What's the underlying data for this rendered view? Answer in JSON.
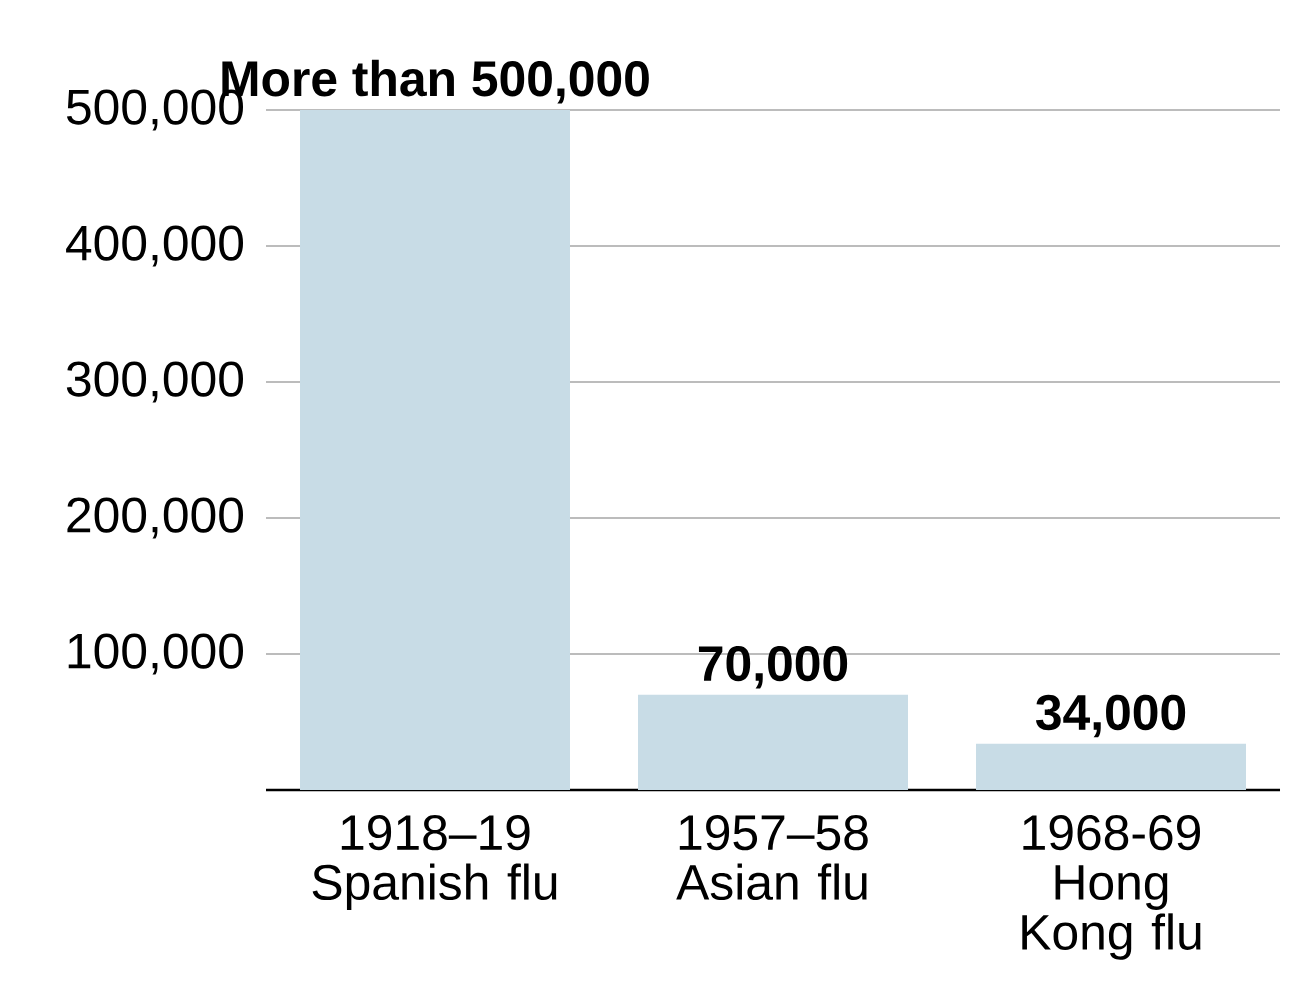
{
  "chart_data": {
    "type": "bar",
    "categories": [
      "1918–19 Spanish flu",
      "1957–58 Asian flu",
      "1968-69 Hong Kong flu"
    ],
    "values": [
      500000,
      70000,
      34000
    ],
    "value_labels": [
      "More than 500,000",
      "70,000",
      "34,000"
    ],
    "color": "#c8dce6",
    "ylim": [
      0,
      500000
    ],
    "yticks": [
      {
        "value": 100000,
        "label": "100,000"
      },
      {
        "value": 200000,
        "label": "200,000"
      },
      {
        "value": 300000,
        "label": "300,000"
      },
      {
        "value": 400000,
        "label": "400,000"
      },
      {
        "value": 500000,
        "label": "500,000"
      }
    ],
    "grid": "y"
  }
}
